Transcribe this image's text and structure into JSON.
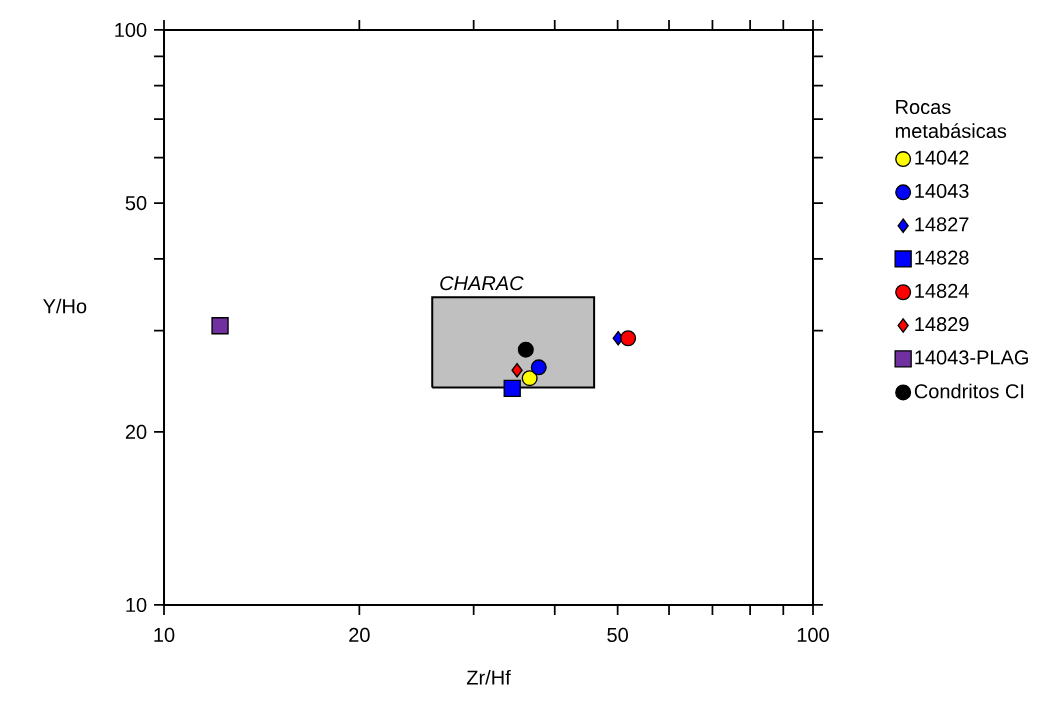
{
  "chart_data": {
    "type": "scatter",
    "xlabel": "Zr/Hf",
    "ylabel": "Y/Ho",
    "legend_title": "Rocas metabásicas",
    "legend": "right",
    "log": "xy",
    "grid": false,
    "xlim": [
      10,
      100
    ],
    "ylim": [
      10,
      100
    ],
    "xticks": [
      10,
      20,
      {
        "value": 30,
        "label": null
      },
      {
        "value": 40,
        "label": null
      },
      50,
      {
        "value": 60,
        "label": null
      },
      {
        "value": 70,
        "label": null
      },
      {
        "value": 80,
        "label": null
      },
      {
        "value": 90,
        "label": null
      },
      100
    ],
    "yticks": [
      10,
      20,
      {
        "value": 30,
        "label": null
      },
      {
        "value": 40,
        "label": null
      },
      50,
      {
        "value": 60,
        "label": null
      },
      {
        "value": 70,
        "label": null
      },
      {
        "value": 80,
        "label": null
      },
      {
        "value": 90,
        "label": null
      },
      100
    ],
    "series": [
      {
        "type": "area",
        "name": "CHARAC",
        "color": "#c0c0c0",
        "x": [
          25.9,
          46.0,
          46.0,
          25.9,
          25.9
        ],
        "values": [
          23.9,
          23.9,
          34.3,
          34.3,
          23.9
        ]
      },
      {
        "name": "14042",
        "color": "#ffff00",
        "marker": "circle",
        "x": [
          36.6
        ],
        "values": [
          24.8
        ]
      },
      {
        "name": "14043",
        "color": "#0000ff",
        "marker": "circle",
        "x": [
          37.8
        ],
        "values": [
          25.9
        ]
      },
      {
        "name": "14827",
        "color": "#0000ff",
        "marker": "diamond",
        "x": [
          50.1
        ],
        "values": [
          29.1
        ]
      },
      {
        "name": "14828",
        "color": "#0000ff",
        "marker": "square",
        "x": [
          34.4
        ],
        "values": [
          23.8
        ]
      },
      {
        "name": "14824",
        "color": "#ff0000",
        "marker": "circle",
        "x": [
          51.9
        ],
        "values": [
          29.1
        ]
      },
      {
        "name": "14829",
        "color": "#ff0000",
        "marker": "diamond",
        "x": [
          35.0
        ],
        "values": [
          25.6
        ]
      },
      {
        "name": "14043-PLAG",
        "color": "#7030a0",
        "marker": "square",
        "x": [
          12.2
        ],
        "values": [
          30.6
        ]
      },
      {
        "name": "Condritos CI",
        "color": "#000000",
        "marker": "circle",
        "x": [
          36.1
        ],
        "values": [
          27.8
        ]
      }
    ]
  }
}
